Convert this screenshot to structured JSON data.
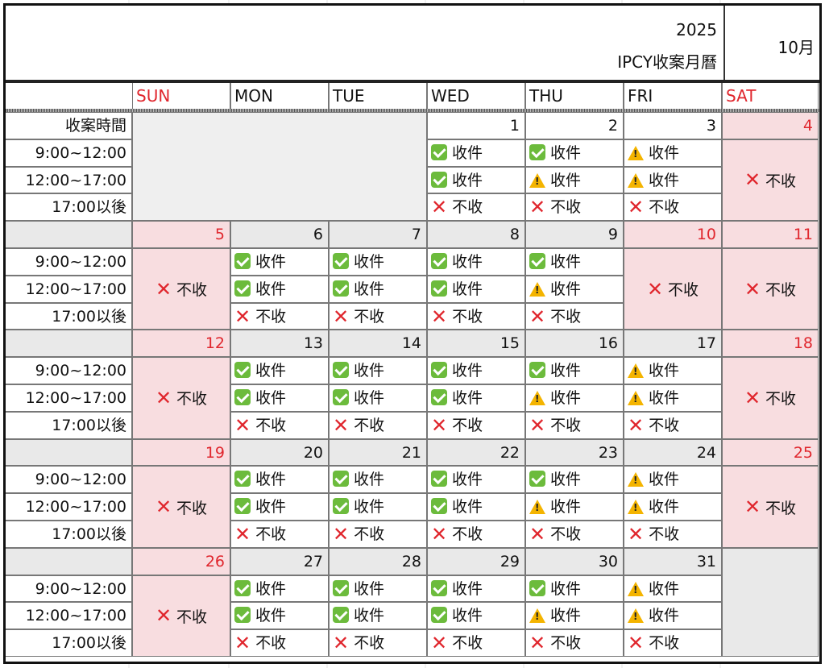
{
  "header": {
    "year": "2025",
    "title": "IPCY收案月曆",
    "month": "10月"
  },
  "days_of_week": [
    "SUN",
    "MON",
    "TUE",
    "WED",
    "THU",
    "FRI",
    "SAT"
  ],
  "slot_labels": {
    "title": "收案時間",
    "slots": [
      "9:00~12:00",
      "12:00~17:00",
      "17:00以後"
    ]
  },
  "status_labels": {
    "open": "收件",
    "closed": "不收"
  },
  "legend_icons": {
    "open": "check-icon",
    "limited": "warning-icon",
    "closed": "cross-icon"
  },
  "colors": {
    "weekend_red": "#e0262d",
    "weekend_bg": "#f8dde0",
    "check_green": "#6cbb3c",
    "warn_yellow": "#f4b400"
  },
  "weeks": [
    {
      "days": [
        {
          "dow": "SUN",
          "date": null
        },
        {
          "dow": "MON",
          "date": null
        },
        {
          "dow": "TUE",
          "date": null
        },
        {
          "dow": "WED",
          "date": "1",
          "slots": [
            "ok",
            "ok",
            "no"
          ]
        },
        {
          "dow": "THU",
          "date": "2",
          "slots": [
            "ok",
            "warn",
            "no"
          ]
        },
        {
          "dow": "FRI",
          "date": "3",
          "slots": [
            "warn",
            "warn",
            "no"
          ]
        },
        {
          "dow": "SAT",
          "date": "4",
          "closed": true
        }
      ]
    },
    {
      "days": [
        {
          "dow": "SUN",
          "date": "5",
          "closed": true
        },
        {
          "dow": "MON",
          "date": "6",
          "slots": [
            "ok",
            "ok",
            "no"
          ]
        },
        {
          "dow": "TUE",
          "date": "7",
          "slots": [
            "ok",
            "ok",
            "no"
          ]
        },
        {
          "dow": "WED",
          "date": "8",
          "slots": [
            "ok",
            "ok",
            "no"
          ]
        },
        {
          "dow": "THU",
          "date": "9",
          "slots": [
            "ok",
            "warn",
            "no"
          ]
        },
        {
          "dow": "FRI",
          "date": "10",
          "closed": true
        },
        {
          "dow": "SAT",
          "date": "11",
          "closed": true
        }
      ]
    },
    {
      "days": [
        {
          "dow": "SUN",
          "date": "12",
          "closed": true
        },
        {
          "dow": "MON",
          "date": "13",
          "slots": [
            "ok",
            "ok",
            "no"
          ]
        },
        {
          "dow": "TUE",
          "date": "14",
          "slots": [
            "ok",
            "ok",
            "no"
          ]
        },
        {
          "dow": "WED",
          "date": "15",
          "slots": [
            "ok",
            "ok",
            "no"
          ]
        },
        {
          "dow": "THU",
          "date": "16",
          "slots": [
            "ok",
            "warn",
            "no"
          ]
        },
        {
          "dow": "FRI",
          "date": "17",
          "slots": [
            "warn",
            "warn",
            "no"
          ]
        },
        {
          "dow": "SAT",
          "date": "18",
          "closed": true
        }
      ]
    },
    {
      "days": [
        {
          "dow": "SUN",
          "date": "19",
          "closed": true
        },
        {
          "dow": "MON",
          "date": "20",
          "slots": [
            "ok",
            "ok",
            "no"
          ]
        },
        {
          "dow": "TUE",
          "date": "21",
          "slots": [
            "ok",
            "ok",
            "no"
          ]
        },
        {
          "dow": "WED",
          "date": "22",
          "slots": [
            "ok",
            "ok",
            "no"
          ]
        },
        {
          "dow": "THU",
          "date": "23",
          "slots": [
            "ok",
            "warn",
            "no"
          ]
        },
        {
          "dow": "FRI",
          "date": "24",
          "slots": [
            "warn",
            "warn",
            "no"
          ]
        },
        {
          "dow": "SAT",
          "date": "25",
          "closed": true
        }
      ]
    },
    {
      "days": [
        {
          "dow": "SUN",
          "date": "26",
          "closed": true
        },
        {
          "dow": "MON",
          "date": "27",
          "slots": [
            "ok",
            "ok",
            "no"
          ]
        },
        {
          "dow": "TUE",
          "date": "28",
          "slots": [
            "ok",
            "ok",
            "no"
          ]
        },
        {
          "dow": "WED",
          "date": "29",
          "slots": [
            "ok",
            "ok",
            "no"
          ]
        },
        {
          "dow": "THU",
          "date": "30",
          "slots": [
            "ok",
            "warn",
            "no"
          ]
        },
        {
          "dow": "FRI",
          "date": "31",
          "slots": [
            "warn",
            "warn",
            "no"
          ]
        },
        {
          "dow": "SAT",
          "date": null
        }
      ]
    }
  ]
}
